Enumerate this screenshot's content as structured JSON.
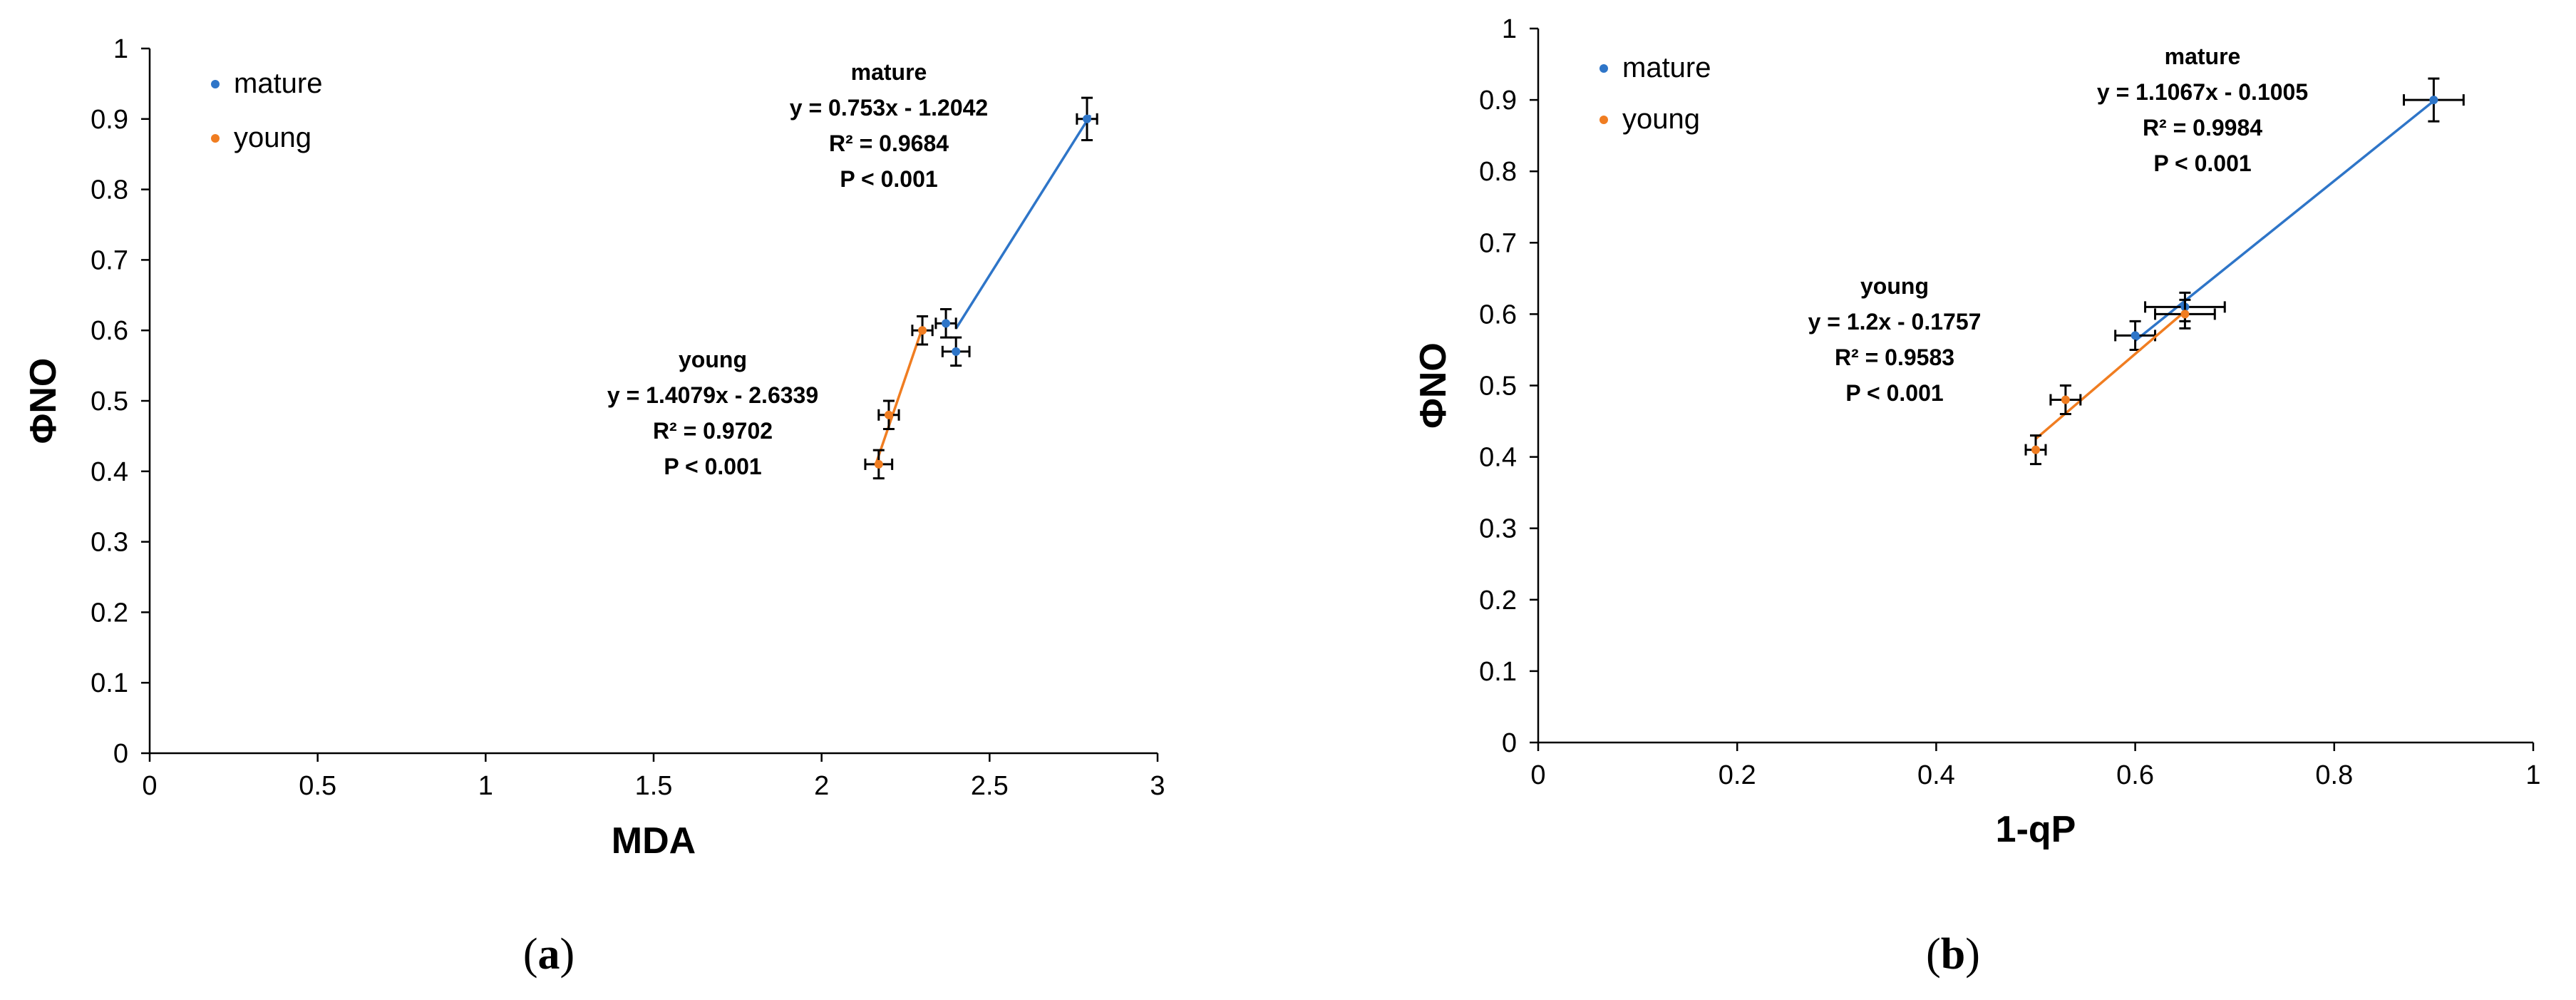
{
  "chart_data": [
    {
      "type": "scatter",
      "caption": "(a)",
      "caption_letter": "a",
      "xlabel": "MDA",
      "ylabel": "ΦNO",
      "xlim": [
        0,
        3
      ],
      "ylim": [
        0,
        1
      ],
      "x_ticks": [
        0,
        0.5,
        1,
        1.5,
        2,
        2.5,
        3
      ],
      "y_ticks": [
        0,
        0.1,
        0.2,
        0.3,
        0.4,
        0.5,
        0.6,
        0.7,
        0.8,
        0.9,
        1
      ],
      "legend": {
        "placement": "top-left",
        "entries": [
          "mature",
          "young"
        ]
      },
      "series": [
        {
          "name": "mature",
          "color": "#2E75C8",
          "points": [
            {
              "x": 2.37,
              "y": 0.61,
              "xerr": 0.03,
              "yerr": 0.02
            },
            {
              "x": 2.4,
              "y": 0.57,
              "xerr": 0.04,
              "yerr": 0.02
            },
            {
              "x": 2.79,
              "y": 0.9,
              "xerr": 0.03,
              "yerr": 0.03
            }
          ],
          "fit": {
            "x_start": 2.4,
            "x_end": 2.8
          },
          "annotation": [
            "mature",
            "y = 0.753x - 1.2042",
            "R² = 0.9684",
            "P < 0.001"
          ]
        },
        {
          "name": "young",
          "color": "#F07D21",
          "points": [
            {
              "x": 2.17,
              "y": 0.41,
              "xerr": 0.04,
              "yerr": 0.02
            },
            {
              "x": 2.2,
              "y": 0.48,
              "xerr": 0.03,
              "yerr": 0.02
            },
            {
              "x": 2.3,
              "y": 0.6,
              "xerr": 0.03,
              "yerr": 0.02
            }
          ],
          "fit": {
            "x_start": 2.16,
            "x_end": 2.3
          },
          "annotation": [
            "young",
            "y = 1.4079x - 2.6339",
            "R² = 0.9702",
            "P < 0.001"
          ]
        }
      ]
    },
    {
      "type": "scatter",
      "caption": "(b)",
      "caption_letter": "b",
      "xlabel": "1-qP",
      "ylabel": "ΦNO",
      "xlim": [
        0,
        1
      ],
      "ylim": [
        0,
        1
      ],
      "x_ticks": [
        0,
        0.2,
        0.4,
        0.6,
        0.8,
        1
      ],
      "y_ticks": [
        0,
        0.1,
        0.2,
        0.3,
        0.4,
        0.5,
        0.6,
        0.7,
        0.8,
        0.9,
        1
      ],
      "legend": {
        "placement": "top-left",
        "entries": [
          "mature",
          "young"
        ]
      },
      "series": [
        {
          "name": "mature",
          "color": "#2E75C8",
          "points": [
            {
              "x": 0.6,
              "y": 0.57,
              "xerr": 0.02,
              "yerr": 0.02
            },
            {
              "x": 0.65,
              "y": 0.61,
              "xerr": 0.04,
              "yerr": 0.02
            },
            {
              "x": 0.9,
              "y": 0.9,
              "xerr": 0.03,
              "yerr": 0.03
            }
          ],
          "fit": {
            "x_start": 0.6,
            "x_end": 0.9
          },
          "annotation": [
            "mature",
            "y = 1.1067x - 0.1005",
            "R² = 0.9984",
            "P < 0.001"
          ]
        },
        {
          "name": "young",
          "color": "#F07D21",
          "points": [
            {
              "x": 0.5,
              "y": 0.41,
              "xerr": 0.01,
              "yerr": 0.02
            },
            {
              "x": 0.53,
              "y": 0.48,
              "xerr": 0.015,
              "yerr": 0.02
            },
            {
              "x": 0.65,
              "y": 0.6,
              "xerr": 0.03,
              "yerr": 0.02
            }
          ],
          "fit": {
            "x_start": 0.5,
            "x_end": 0.65
          },
          "annotation": [
            "young",
            "y = 1.2x - 0.1757",
            "R² = 0.9583",
            "P < 0.001"
          ]
        }
      ]
    }
  ]
}
